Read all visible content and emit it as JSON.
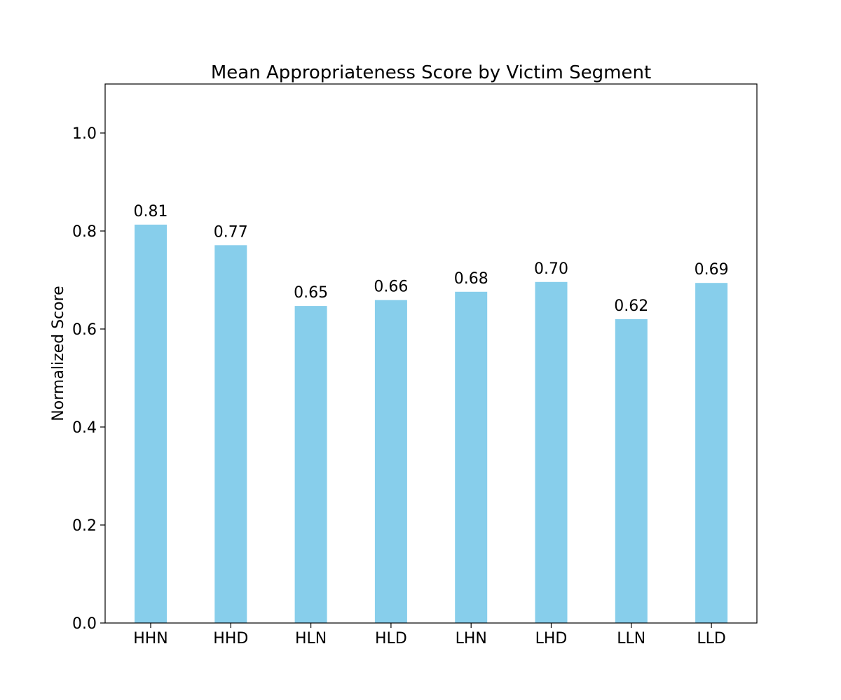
{
  "chart_data": {
    "type": "bar",
    "title": "Mean Appropriateness Score by Victim Segment",
    "xlabel": "",
    "ylabel": "Normalized Score",
    "categories": [
      "HHN",
      "HHD",
      "HLN",
      "HLD",
      "LHN",
      "LHD",
      "LLN",
      "LLD"
    ],
    "values": [
      0.813,
      0.771,
      0.647,
      0.659,
      0.676,
      0.696,
      0.62,
      0.694
    ],
    "data_labels": [
      "0.81",
      "0.77",
      "0.65",
      "0.66",
      "0.68",
      "0.70",
      "0.62",
      "0.69"
    ],
    "ylim": [
      0,
      1.1
    ],
    "yticks": [
      0.0,
      0.2,
      0.4,
      0.6,
      0.8,
      1.0
    ],
    "ytick_labels": [
      "0.0",
      "0.2",
      "0.4",
      "0.6",
      "0.8",
      "1.0"
    ],
    "bar_color": "#87CEEB",
    "grid": false,
    "legend": "none"
  }
}
